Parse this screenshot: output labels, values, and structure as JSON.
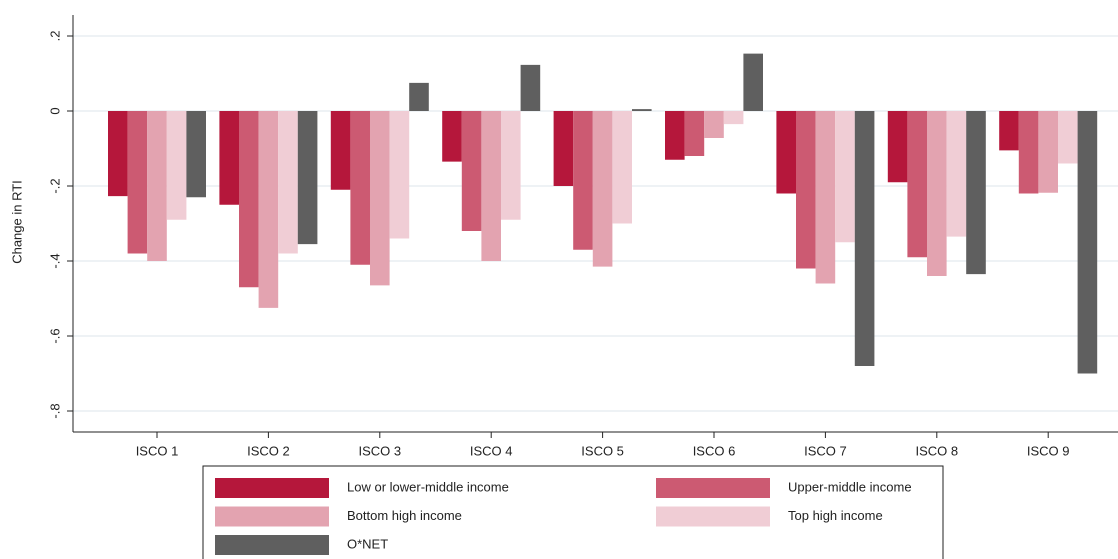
{
  "chart_data": {
    "type": "bar",
    "ylabel": "Change in RTI",
    "categories": [
      "ISCO 1",
      "ISCO 2",
      "ISCO 3",
      "ISCO 4",
      "ISCO 5",
      "ISCO 6",
      "ISCO 7",
      "ISCO 8",
      "ISCO 9"
    ],
    "series": [
      {
        "name": "Low or lower-middle income",
        "color": "#b5173b",
        "values": [
          -0.227,
          -0.25,
          -0.21,
          -0.135,
          -0.2,
          -0.13,
          -0.22,
          -0.19,
          -0.105
        ]
      },
      {
        "name": "Upper-middle income",
        "color": "#cc5a72",
        "values": [
          -0.38,
          -0.47,
          -0.41,
          -0.32,
          -0.37,
          -0.12,
          -0.42,
          -0.39,
          -0.22
        ]
      },
      {
        "name": "Bottom high income",
        "color": "#e3a3b0",
        "values": [
          -0.4,
          -0.525,
          -0.465,
          -0.4,
          -0.415,
          -0.072,
          -0.46,
          -0.44,
          -0.218
        ]
      },
      {
        "name": "Top high income",
        "color": "#f0cdd5",
        "values": [
          -0.29,
          -0.38,
          -0.34,
          -0.29,
          -0.3,
          -0.035,
          -0.35,
          -0.335,
          -0.14
        ]
      },
      {
        "name": "O*NET",
        "color": "#5f5f5f",
        "values": [
          -0.23,
          -0.355,
          0.075,
          0.123,
          0.005,
          0.153,
          -0.68,
          -0.435,
          -0.7
        ]
      }
    ],
    "ylim": [
      -0.856,
      0.256
    ],
    "yticks": [
      {
        "value": 0.2,
        "label": ".2"
      },
      0,
      {
        "value": -0.2,
        "label": "-.2"
      },
      {
        "value": -0.4,
        "label": "-.4"
      },
      {
        "value": -0.6,
        "label": "-.6"
      },
      {
        "value": -0.8,
        "label": "-.8"
      }
    ],
    "grid": true
  }
}
